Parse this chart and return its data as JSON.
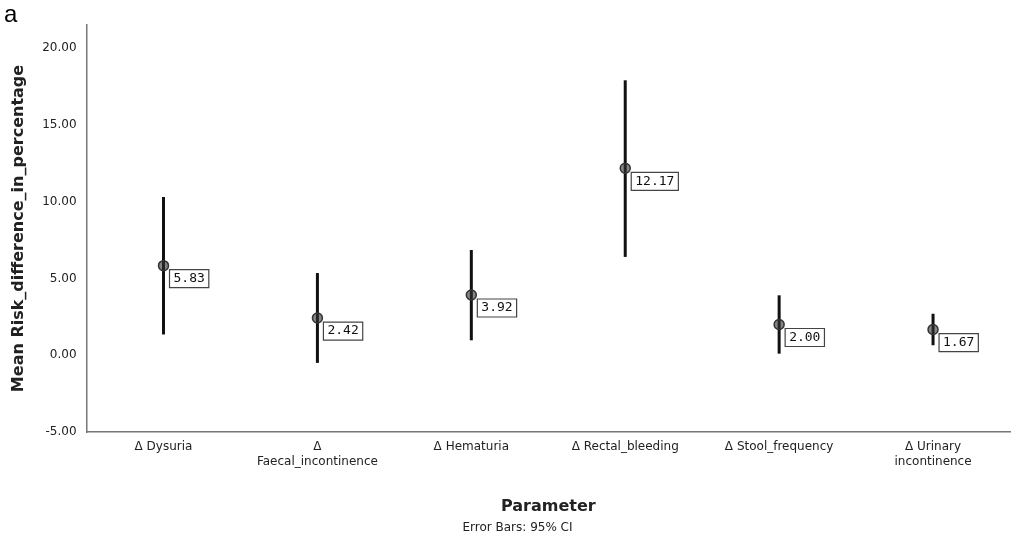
{
  "chart_data": {
    "type": "scatter",
    "title": "a",
    "xlabel": "Parameter",
    "ylabel": "Mean Risk_difference_in_percentage",
    "categories": [
      "Δ Dysuria",
      "Δ Faecal_incontinence",
      "Δ Hematuria",
      "Δ Rectal_bleeding",
      "Δ Stool_frequency",
      "Δ Urinary incontinence"
    ],
    "series": [
      {
        "color": "#333333",
        "values": [
          5.83,
          2.42,
          3.92,
          12.17,
          2.0,
          1.67
        ],
        "value_labels": [
          "5.83",
          "2.42",
          "3.92",
          "12.17",
          "2.00",
          "1.67"
        ],
        "errors": [
          [
            1.35,
            10.3
          ],
          [
            -0.5,
            5.35
          ],
          [
            0.97,
            6.85
          ],
          [
            6.4,
            17.9
          ],
          [
            0.1,
            3.9
          ],
          [
            0.65,
            2.7
          ]
        ]
      }
    ],
    "marker": "circle",
    "grid": false,
    "legend": false,
    "ylim": [
      -5,
      21.5
    ],
    "yticks": [
      {
        "value": -5,
        "label": "-5.00"
      },
      {
        "value": 0,
        "label": "0.00"
      },
      {
        "value": 5,
        "label": "5.00"
      },
      {
        "value": 10,
        "label": "10.00"
      },
      {
        "value": 15,
        "label": "15.00"
      },
      {
        "value": 20,
        "label": "20.00"
      }
    ],
    "annotations": [
      "Error Bars: 95% CI"
    ]
  }
}
